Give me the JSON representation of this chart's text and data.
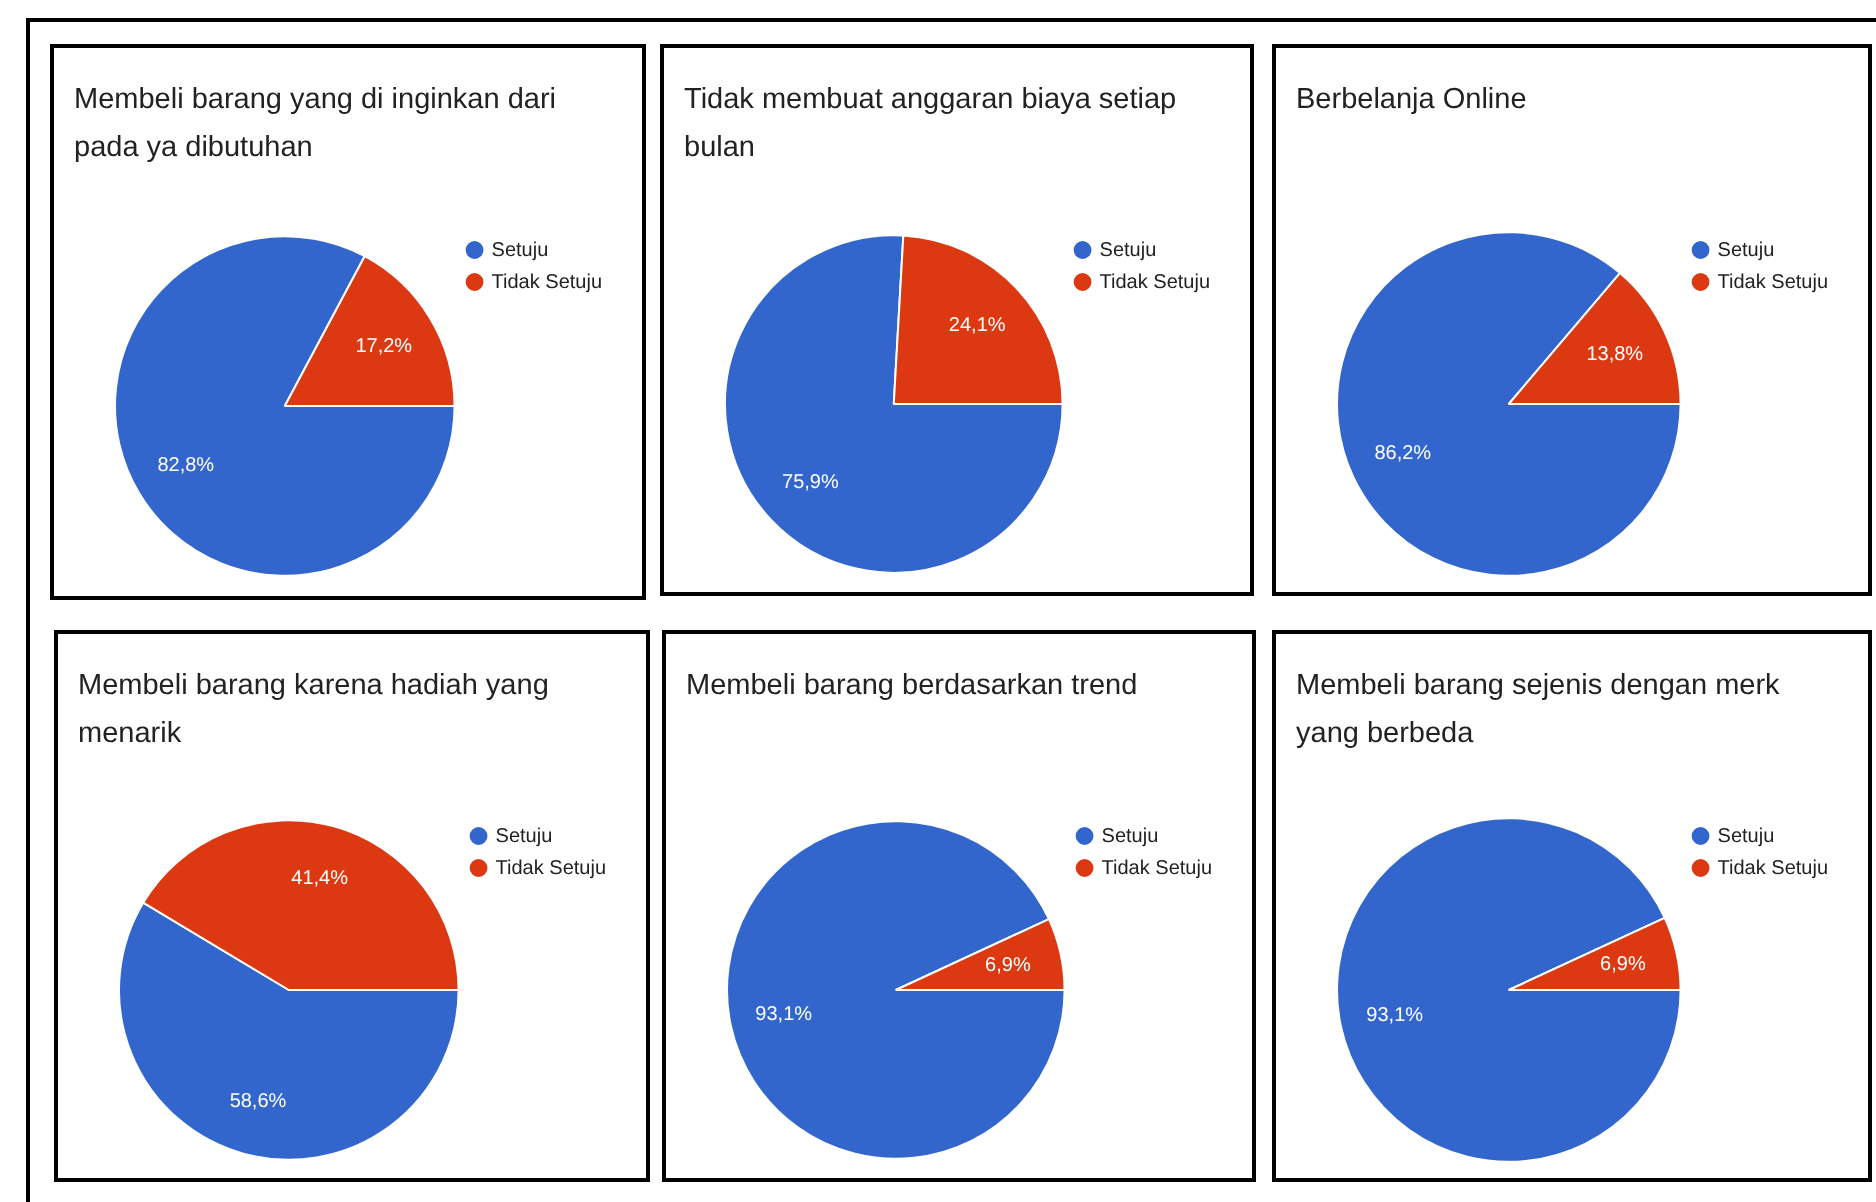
{
  "chart_data": [
    {
      "type": "pie",
      "title": "Membeli barang yang di inginkan dari pada ya dibutuhan",
      "categories": [
        "Setuju",
        "Tidak Setuju"
      ],
      "values": [
        82.8,
        17.2
      ],
      "colors": [
        "#3366cc",
        "#dc3912"
      ],
      "value_labels": [
        "82,8%",
        "17,2%"
      ],
      "legend": "right"
    },
    {
      "type": "pie",
      "title": "Tidak membuat anggaran biaya setiap bulan",
      "categories": [
        "Setuju",
        "Tidak Setuju"
      ],
      "values": [
        75.9,
        24.1
      ],
      "colors": [
        "#3366cc",
        "#dc3912"
      ],
      "value_labels": [
        "75,9%",
        "24,1%"
      ],
      "legend": "right"
    },
    {
      "type": "pie",
      "title": "Berbelanja Online",
      "categories": [
        "Setuju",
        "Tidak Setuju"
      ],
      "values": [
        86.2,
        13.8
      ],
      "colors": [
        "#3366cc",
        "#dc3912"
      ],
      "value_labels": [
        "86,2%",
        "13,8%"
      ],
      "legend": "right"
    },
    {
      "type": "pie",
      "title": "Membeli barang karena hadiah yang menarik",
      "categories": [
        "Setuju",
        "Tidak Setuju"
      ],
      "values": [
        58.6,
        41.4
      ],
      "colors": [
        "#3366cc",
        "#dc3912"
      ],
      "value_labels": [
        "58,6%",
        "41,4%"
      ],
      "legend": "right"
    },
    {
      "type": "pie",
      "title": "Membeli barang berdasarkan trend",
      "categories": [
        "Setuju",
        "Tidak Setuju"
      ],
      "values": [
        93.1,
        6.9
      ],
      "colors": [
        "#3366cc",
        "#dc3912"
      ],
      "value_labels": [
        "93,1%",
        "6,9%"
      ],
      "legend": "right"
    },
    {
      "type": "pie",
      "title": "Membeli barang sejenis dengan merk yang berbeda",
      "categories": [
        "Setuju",
        "Tidak Setuju"
      ],
      "values": [
        93.1,
        6.9
      ],
      "colors": [
        "#3366cc",
        "#dc3912"
      ],
      "value_labels": [
        "93,1%",
        "6,9%"
      ],
      "legend": "right"
    }
  ]
}
